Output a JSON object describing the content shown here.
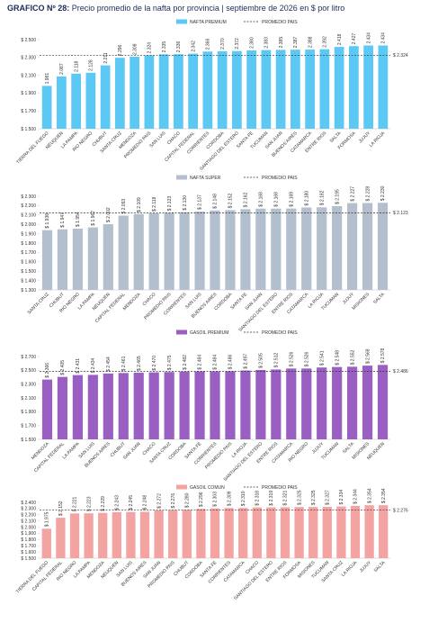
{
  "header": {
    "label": "GRAFICO Nº 28:",
    "text": " Precio promedio de la nafta por provincia | septiembre de 2026 en $ por litro"
  },
  "chart_data": [
    {
      "type": "bar",
      "series_name": "NAFTA PREMIUM",
      "average_name": "PROMEDIO PAIS",
      "color": "#5cc8f4",
      "categories": [
        "TIERRA DEL FUEGO",
        "NEUQUEN",
        "LA PAMPA",
        "RIO NEGRO",
        "CHUBUT",
        "SANTA CRUZ",
        "MENDOZA",
        "PROMEDIO PAIS",
        "SAN LUIS",
        "CHACO",
        "CAPITAL FEDERAL",
        "CORRIENTES",
        "CORDOBA",
        "SANTIAGO DEL ESTERO",
        "SANTA FE",
        "TUCUMAN",
        "SAN JUAN",
        "BUENOS AIRES",
        "CATAMARCA",
        "ENTRE RIOS",
        "SALTA",
        "FORMOSA",
        "JUJUY",
        "LA RIOJA"
      ],
      "values": [
        1981,
        2087,
        2118,
        2128,
        2211,
        2296,
        2308,
        2324,
        2335,
        2336,
        2342,
        2366,
        2370,
        2372,
        2380,
        2383,
        2385,
        2387,
        2388,
        2392,
        2418,
        2427,
        2434,
        2434
      ],
      "value_labels": [
        "1.981",
        "2.087",
        "2.118",
        "2.128",
        "2.211",
        "2.296",
        "2.308",
        "2.324",
        "2.335",
        "2.336",
        "2.342",
        "2.366",
        "2.370",
        "2.372",
        "2.380",
        "2.383",
        "2.385",
        "2.387",
        "2.388",
        "2.392",
        "2.418",
        "2.427",
        "2.434",
        "2.434"
      ],
      "average": {
        "value": 2324,
        "label": "$ 2.324"
      },
      "ylim": [
        1500,
        2500
      ],
      "yticks": [
        {
          "value": 1500,
          "label": "$ 1.500"
        },
        {
          "value": 1700,
          "label": "$ 1.700"
        },
        {
          "value": 1900,
          "label": "$ 1.900"
        },
        {
          "value": 2100,
          "label": "$ 2.100"
        },
        {
          "value": 2300,
          "label": "$ 2.300"
        },
        {
          "value": 2500,
          "label": "$ 2.500"
        }
      ]
    },
    {
      "type": "bar",
      "series_name": "NAFTA SUPER",
      "average_name": "PROMEDIO PAIS",
      "color": "#b3bfcc",
      "categories": [
        "SANTA CRUZ",
        "CHUBUT",
        "RIO NEGRO",
        "LA PAMPA",
        "NEUQUEN",
        "CAPITAL FEDERAL",
        "MENDOZA",
        "CHACO",
        "PROMEDIO PAIS",
        "CORRIENTES",
        "SAN LUIS",
        "BUENOS AIRES",
        "CORDOBA",
        "SANTA FE",
        "SAN JUAN",
        "SANTIAGO DEL ESTERO",
        "ENTRE RIOS",
        "CATAMARCA",
        "LA RIOJA",
        "TUCUMAN",
        "JUJUY",
        "MISIONES",
        "SALTA"
      ],
      "values": [
        1938,
        1947,
        1954,
        1967,
        2002,
        2093,
        2109,
        2118,
        2123,
        2130,
        2137,
        2148,
        2152,
        2162,
        2168,
        2168,
        2169,
        2180,
        2182,
        2195,
        2227,
        2228,
        2230
      ],
      "value_labels": [
        "$ 1.938",
        "$ 1.947",
        "$ 1.954",
        "$ 1.967",
        "$ 2.002",
        "$ 2.093",
        "$ 2.109",
        "$ 2.118",
        "$ 2.123",
        "$ 2.130",
        "$ 2.137",
        "$ 2.148",
        "$ 2.152",
        "$ 2.162",
        "$ 2.168",
        "$ 2.168",
        "$ 2.169",
        "$ 2.180",
        "$ 2.182",
        "$ 2.195",
        "$ 2.227",
        "$ 2.228",
        "$ 2.230"
      ],
      "average": {
        "value": 2123,
        "label": "$ 2.123"
      },
      "ylim": [
        1300,
        2300
      ],
      "yticks": [
        {
          "value": 1300,
          "label": "$ 1.300"
        },
        {
          "value": 1400,
          "label": "$ 1.400"
        },
        {
          "value": 1500,
          "label": "$ 1.500"
        },
        {
          "value": 1600,
          "label": "$ 1.600"
        },
        {
          "value": 1700,
          "label": "$ 1.700"
        },
        {
          "value": 1800,
          "label": "$ 1.800"
        },
        {
          "value": 1900,
          "label": "$ 1.900"
        },
        {
          "value": 2000,
          "label": "$ 2.000"
        },
        {
          "value": 2100,
          "label": "$ 2.100"
        },
        {
          "value": 2200,
          "label": "$ 2.200"
        },
        {
          "value": 2300,
          "label": "$ 2.300"
        }
      ]
    },
    {
      "type": "bar",
      "series_name": "GASOIL PREMIUM",
      "average_name": "PROMEDIO PAIS",
      "color": "#9a5fc2",
      "categories": [
        "MENDOZA",
        "CAPITAL FEDERAL",
        "LA PAMPA",
        "SAN LUIS",
        "BUENOS AIRES",
        "CHUBUT",
        "SAN JUAN",
        "CHACO",
        "SANTA CRUZ",
        "CORDOBA",
        "SANTA FE",
        "CORRIENTES",
        "PROMEDIO PAIS",
        "LA RIOJA",
        "SANTIAGO DEL ESTERO",
        "ENTRE RIOS",
        "CATAMARCA",
        "RIO NEGRO",
        "JUJUY",
        "TUCUMAN",
        "SALTA",
        "MISIONES",
        "NEUQUEN"
      ],
      "values": [
        2366,
        2405,
        2431,
        2434,
        2454,
        2461,
        2465,
        2470,
        2475,
        2482,
        2484,
        2484,
        2486,
        2497,
        2505,
        2512,
        2526,
        2526,
        2541,
        2548,
        2552,
        2568,
        2578
      ],
      "value_labels": [
        "$ 2.366",
        "$ 2.405",
        "$ 2.431",
        "$ 2.434",
        "$ 2.454",
        "$ 2.461",
        "$ 2.465",
        "$ 2.470",
        "$ 2.475",
        "$ 2.482",
        "$ 2.484",
        "$ 2.484",
        "$ 2.486",
        "$ 2.497",
        "$ 2.505",
        "$ 2.512",
        "$ 2.526",
        "$ 2.526",
        "$ 2.541",
        "$ 2.548",
        "$ 2.552",
        "$ 2.568",
        "$ 2.578"
      ],
      "average": {
        "value": 2486,
        "label": "$ 2.486"
      },
      "ylim": [
        1500,
        2700
      ],
      "yticks": [
        {
          "value": 1500,
          "label": "$ 1.500"
        },
        {
          "value": 1700,
          "label": "$ 1.700"
        },
        {
          "value": 1900,
          "label": "$ 1.900"
        },
        {
          "value": 2100,
          "label": "$ 2.100"
        },
        {
          "value": 2300,
          "label": "$ 2.300"
        },
        {
          "value": 2500,
          "label": "$ 2.500"
        },
        {
          "value": 2700,
          "label": "$ 2.700"
        }
      ]
    },
    {
      "type": "bar",
      "series_name": "GASOIL COMUN",
      "average_name": "PROMEDIO PAIS",
      "color": "#f4a3a3",
      "categories": [
        "TIERRA DEL FUEGO",
        "CAPITAL FEDERAL",
        "RIO NEGRO",
        "LA PAMPA",
        "MENDOZA",
        "NEUQUEN",
        "SAN LUIS",
        "BUENOS AIRES",
        "SAN JUAN",
        "PROMEDIO PAIS",
        "CHUBUT",
        "CORDOBA",
        "SANTA FE",
        "CORRIENTES",
        "CATAMARCA",
        "CHACO",
        "SANTIAGO DEL ESTERO",
        "ENTRE RIOS",
        "FORMOSA",
        "MISIONES",
        "TUCUMAN",
        "SANTA CRUZ",
        "LA RIOJA",
        "JUJUY",
        "SALTA"
      ],
      "values": [
        1975,
        2152,
        2221,
        2223,
        2229,
        2243,
        2245,
        2248,
        2272,
        2276,
        2280,
        2296,
        2303,
        2309,
        2310,
        2318,
        2319,
        2321,
        2325,
        2325,
        2327,
        2334,
        2344,
        2354,
        2354
      ],
      "value_labels": [
        "$ 1.975",
        "$ 2.152",
        "$ 2.221",
        "$ 2.223",
        "$ 2.229",
        "$ 2.243",
        "$ 2.245",
        "$ 2.248",
        "$ 2.272",
        "$ 2.276",
        "$ 2.280",
        "$ 2.296",
        "$ 2.303",
        "$ 2.309",
        "$ 2.310",
        "$ 2.318",
        "$ 2.319",
        "$ 2.321",
        "$ 2.325",
        "$ 2.325",
        "$ 2.327",
        "$ 2.334",
        "$ 2.344",
        "$ 2.354",
        "$ 2.354"
      ],
      "average": {
        "value": 2276,
        "label": "$ 2.276"
      },
      "ylim": [
        1500,
        2400
      ],
      "yticks": [
        {
          "value": 1500,
          "label": "$ 1.500"
        },
        {
          "value": 1600,
          "label": "$ 1.600"
        },
        {
          "value": 1700,
          "label": "$ 1.700"
        },
        {
          "value": 1800,
          "label": "$ 1.800"
        },
        {
          "value": 1900,
          "label": "$ 1.900"
        },
        {
          "value": 2000,
          "label": "$ 2.000"
        },
        {
          "value": 2100,
          "label": "$ 2.100"
        },
        {
          "value": 2200,
          "label": "$ 2.200"
        },
        {
          "value": 2300,
          "label": "$ 2.300"
        },
        {
          "value": 2400,
          "label": "$ 2.400"
        }
      ]
    }
  ]
}
